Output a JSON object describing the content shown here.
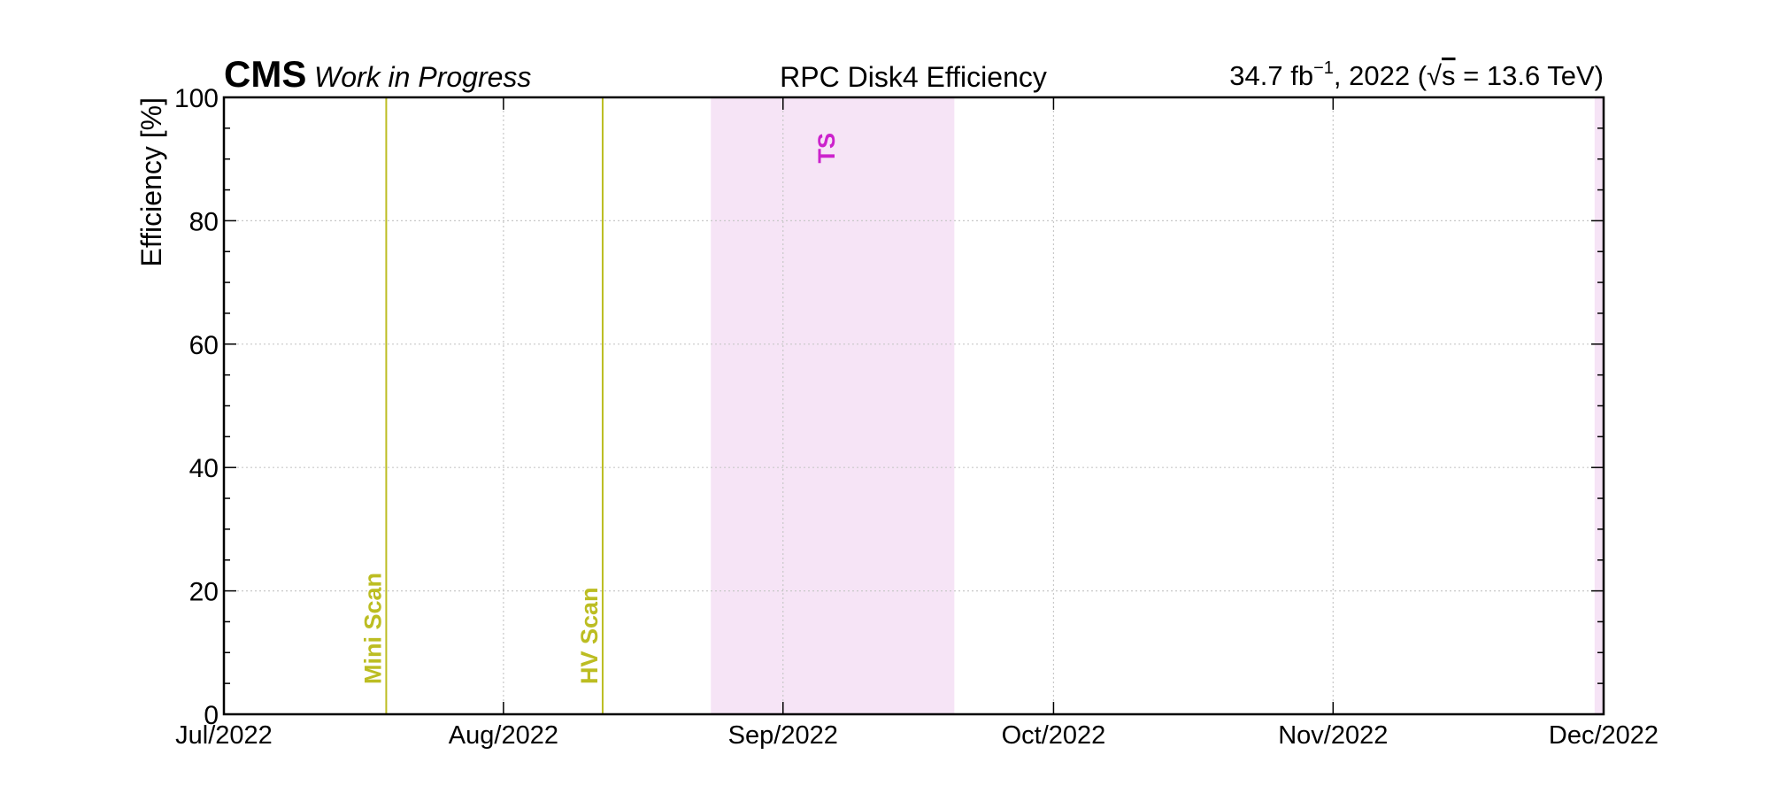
{
  "chart_data": {
    "type": "scatter",
    "title": "RPC Disk4 Efficiency",
    "experiment": "CMS",
    "status": "Work in Progress",
    "lumi_text": {
      "value": "34.7 fb",
      "exponent": "−1",
      "year": ", 2022 (",
      "sqrt": "√",
      "s": "s",
      "energy": " = 13.6 TeV)"
    },
    "xlabel": "",
    "ylabel": "Efficiency [%]",
    "xlim": [
      "2022-07-01",
      "2022-12-01"
    ],
    "ylim": [
      0,
      100
    ],
    "x_ticks": [
      {
        "date": "2022-07-01",
        "label": "Jul/2022"
      },
      {
        "date": "2022-08-01",
        "label": "Aug/2022"
      },
      {
        "date": "2022-09-01",
        "label": "Sep/2022"
      },
      {
        "date": "2022-10-01",
        "label": "Oct/2022"
      },
      {
        "date": "2022-11-01",
        "label": "Nov/2022"
      },
      {
        "date": "2022-12-01",
        "label": "Dec/2022"
      }
    ],
    "y_ticks": [
      0,
      20,
      40,
      60,
      80,
      100
    ],
    "grid": true,
    "series": [],
    "vertical_lines": [
      {
        "label": "Mini Scan",
        "date": "2022-07-19",
        "color": "#bcbd22"
      },
      {
        "label": "HV Scan",
        "date": "2022-08-12",
        "color": "#bcbd22"
      }
    ],
    "shaded_regions": [
      {
        "label": "TS",
        "start": "2022-08-24",
        "end": "2022-09-20",
        "color": "#f6e4f6",
        "label_color": "#cc22cc"
      },
      {
        "label": "",
        "start": "2022-11-30",
        "end": "2022-12-01",
        "color": "#f6e4f6",
        "label_color": "#cc22cc"
      }
    ]
  }
}
